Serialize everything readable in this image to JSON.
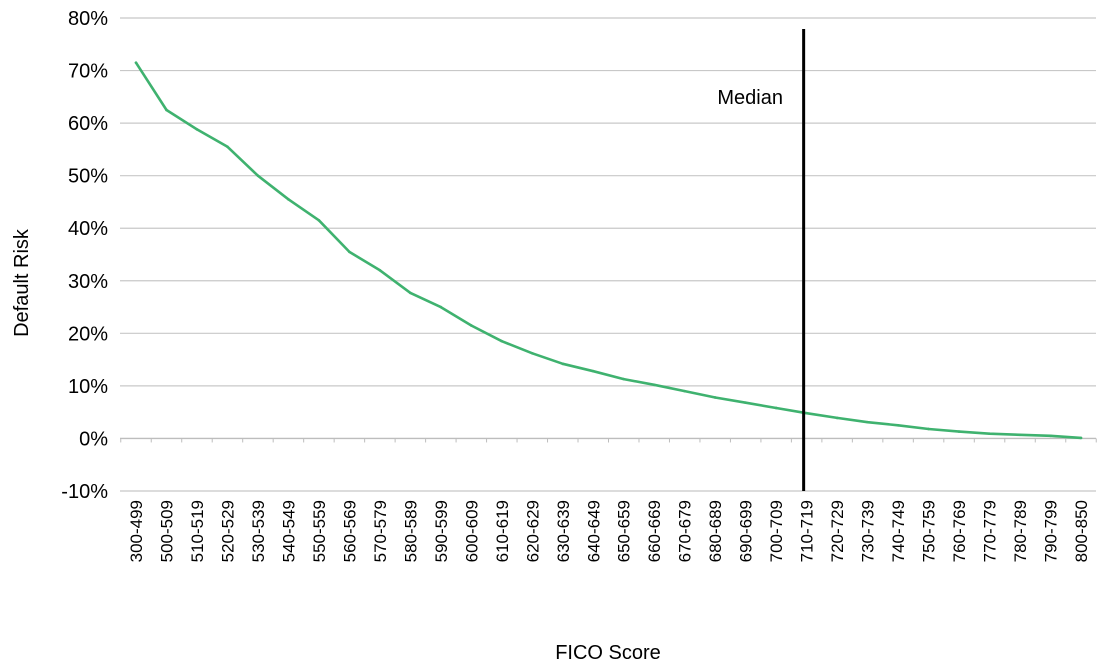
{
  "chart_data": {
    "type": "line",
    "title": "",
    "xlabel": "FICO Score",
    "ylabel": "Default Risk",
    "ylim": [
      -10,
      80
    ],
    "y_ticks": [
      "-10%",
      "0%",
      "10%",
      "20%",
      "30%",
      "40%",
      "50%",
      "60%",
      "70%",
      "80%"
    ],
    "y_tick_values": [
      -10,
      0,
      10,
      20,
      30,
      40,
      50,
      60,
      70,
      80
    ],
    "grid": true,
    "legend": "none",
    "categories": [
      "300-499",
      "500-509",
      "510-519",
      "520-529",
      "530-539",
      "540-549",
      "550-559",
      "560-569",
      "570-579",
      "580-589",
      "590-599",
      "600-609",
      "610-619",
      "620-629",
      "630-639",
      "640-649",
      "650-659",
      "660-669",
      "670-679",
      "680-689",
      "690-699",
      "700-709",
      "710-719",
      "720-729",
      "730-739",
      "740-749",
      "750-759",
      "760-769",
      "770-779",
      "780-789",
      "790-799",
      "800-850"
    ],
    "series": [
      {
        "color": "#3fb26f",
        "values": [
          71.5,
          62.5,
          58.8,
          55.5,
          50,
          45.5,
          41.5,
          35.5,
          32,
          27.7,
          25,
          21.5,
          18.5,
          16.2,
          14.2,
          12.8,
          11.3,
          10.2,
          9,
          7.8,
          6.8,
          5.8,
          4.8,
          3.9,
          3.1,
          2.5,
          1.8,
          1.3,
          0.9,
          0.7,
          0.5,
          0.1
        ]
      }
    ],
    "annotations": [
      {
        "type": "vertical-line",
        "label": "Median",
        "category": "710-719",
        "color": "#000000"
      }
    ]
  }
}
